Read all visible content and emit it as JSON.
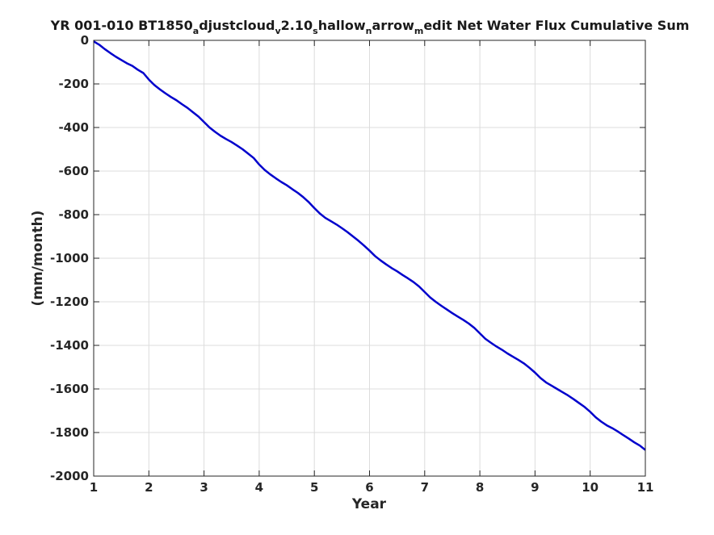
{
  "chart_data": {
    "type": "line",
    "title": {
      "segments": [
        {
          "text": "YR 001-010 BT1850",
          "sub": false
        },
        {
          "text": "a",
          "sub": true
        },
        {
          "text": "djustcloud",
          "sub": false
        },
        {
          "text": "v",
          "sub": true
        },
        {
          "text": "2.10",
          "sub": false
        },
        {
          "text": "s",
          "sub": true
        },
        {
          "text": "hallow",
          "sub": false
        },
        {
          "text": "n",
          "sub": true
        },
        {
          "text": "arrow",
          "sub": false
        },
        {
          "text": "m",
          "sub": true
        },
        {
          "text": "edit Net Water Flux Cumulative Sum",
          "sub": false
        }
      ]
    },
    "xlabel": "Year",
    "ylabel": "(mm/month)",
    "xlim": [
      1,
      11
    ],
    "ylim": [
      -2000,
      0
    ],
    "xticks": [
      1,
      2,
      3,
      4,
      5,
      6,
      7,
      8,
      9,
      10,
      11
    ],
    "yticks": [
      0,
      -200,
      -400,
      -600,
      -800,
      -1000,
      -1200,
      -1400,
      -1600,
      -1800,
      -2000
    ],
    "grid": true,
    "line_color": "#0000cc",
    "series": [
      {
        "x": [
          1.0,
          1.1,
          1.2,
          1.3,
          1.4,
          1.5,
          1.6,
          1.7,
          1.8,
          1.9,
          2.0,
          2.1,
          2.2,
          2.3,
          2.4,
          2.5,
          2.6,
          2.7,
          2.8,
          2.9,
          3.0,
          3.1,
          3.2,
          3.3,
          3.4,
          3.5,
          3.6,
          3.7,
          3.8,
          3.9,
          4.0,
          4.1,
          4.2,
          4.3,
          4.4,
          4.5,
          4.6,
          4.7,
          4.8,
          4.9,
          5.0,
          5.1,
          5.2,
          5.3,
          5.4,
          5.5,
          5.6,
          5.7,
          5.8,
          5.9,
          6.0,
          6.1,
          6.2,
          6.3,
          6.4,
          6.5,
          6.6,
          6.7,
          6.8,
          6.9,
          7.0,
          7.1,
          7.2,
          7.3,
          7.4,
          7.5,
          7.6,
          7.7,
          7.8,
          7.9,
          8.0,
          8.1,
          8.2,
          8.3,
          8.4,
          8.5,
          8.6,
          8.7,
          8.8,
          8.9,
          9.0,
          9.1,
          9.2,
          9.3,
          9.4,
          9.5,
          9.6,
          9.7,
          9.8,
          9.9,
          10.0,
          10.1,
          10.2,
          10.3,
          10.4,
          10.5,
          10.6,
          10.7,
          10.8,
          10.9,
          11.0
        ],
        "values": [
          -5,
          -20,
          -40,
          -58,
          -75,
          -90,
          -105,
          -117,
          -135,
          -150,
          -180,
          -205,
          -225,
          -243,
          -260,
          -275,
          -293,
          -310,
          -330,
          -350,
          -375,
          -400,
          -420,
          -438,
          -453,
          -467,
          -483,
          -500,
          -520,
          -540,
          -570,
          -595,
          -615,
          -633,
          -650,
          -665,
          -683,
          -700,
          -720,
          -743,
          -770,
          -795,
          -815,
          -830,
          -845,
          -862,
          -880,
          -900,
          -920,
          -942,
          -965,
          -990,
          -1010,
          -1028,
          -1045,
          -1060,
          -1077,
          -1093,
          -1110,
          -1130,
          -1155,
          -1180,
          -1200,
          -1218,
          -1235,
          -1252,
          -1268,
          -1283,
          -1300,
          -1320,
          -1345,
          -1370,
          -1388,
          -1405,
          -1420,
          -1437,
          -1452,
          -1467,
          -1483,
          -1503,
          -1525,
          -1550,
          -1570,
          -1585,
          -1600,
          -1615,
          -1630,
          -1647,
          -1665,
          -1683,
          -1705,
          -1730,
          -1750,
          -1767,
          -1780,
          -1795,
          -1812,
          -1828,
          -1845,
          -1860,
          -1880
        ]
      }
    ]
  }
}
